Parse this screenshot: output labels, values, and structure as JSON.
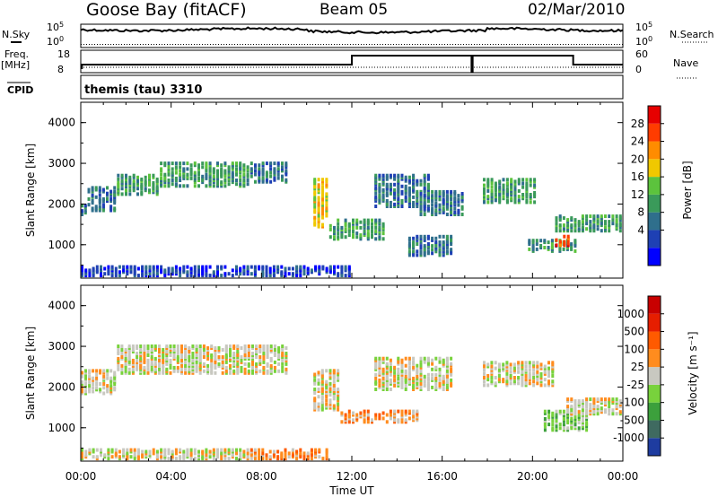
{
  "header": {
    "station": "Goose Bay (fitACF)",
    "beam": "Beam 05",
    "date": "02/Mar/2010"
  },
  "top_panels": {
    "nsky_label": "N.Sky",
    "nsearch_label": "N.Search",
    "ns_ticks_left": [
      "10^5",
      "10^0"
    ],
    "ns_ticks_right": [
      "10^5",
      "10^0"
    ],
    "freq_label": "Freq.",
    "freq_unit": "[MHz]",
    "freq_ticks": [
      "18",
      "8"
    ],
    "nave_label": "Nave",
    "nave_ticks": [
      "60",
      "0"
    ],
    "cpid_label": "CPID",
    "cpid_text": "themis (tau) 3310"
  },
  "chart_data": [
    {
      "type": "heatmap",
      "title": "Power",
      "ylabel": "Slant Range [km]",
      "ylim": [
        180,
        4500
      ],
      "yticks": [
        "4000",
        "3000",
        "2000",
        "1000"
      ],
      "colorbar": {
        "label": "Power [dB]",
        "ticks": [
          "28",
          "24",
          "20",
          "16",
          "12",
          "8",
          "4"
        ],
        "colors": [
          "#0000ff",
          "#1e40b4",
          "#2f6f8c",
          "#3a9a5a",
          "#5cc33d",
          "#f0c800",
          "#ff8c00",
          "#ff3c00",
          "#e60000"
        ]
      },
      "regions": [
        {
          "t": [
            0.0,
            0.3
          ],
          "r": [
            1700,
            2000
          ],
          "level": 2
        },
        {
          "t": [
            0.3,
            1.6
          ],
          "r": [
            1800,
            2400
          ],
          "level": 2
        },
        {
          "t": [
            1.6,
            3.5
          ],
          "r": [
            2200,
            2700
          ],
          "level": 3
        },
        {
          "t": [
            3.5,
            6.0
          ],
          "r": [
            2400,
            3000
          ],
          "level": 3
        },
        {
          "t": [
            6.0,
            7.5
          ],
          "r": [
            2400,
            3000
          ],
          "level": 3
        },
        {
          "t": [
            7.5,
            9.2
          ],
          "r": [
            2500,
            3000
          ],
          "level": 2
        },
        {
          "t": [
            10.3,
            11.0
          ],
          "r": [
            1400,
            2600
          ],
          "level": 5
        },
        {
          "t": [
            11.0,
            13.5
          ],
          "r": [
            1100,
            1600
          ],
          "level": 3
        },
        {
          "t": [
            13.0,
            15.5
          ],
          "r": [
            1900,
            2700
          ],
          "level": 2
        },
        {
          "t": [
            14.5,
            16.5
          ],
          "r": [
            700,
            1200
          ],
          "level": 2
        },
        {
          "t": [
            15.0,
            17.0
          ],
          "r": [
            1700,
            2300
          ],
          "level": 2
        },
        {
          "t": [
            17.8,
            20.2
          ],
          "r": [
            2000,
            2600
          ],
          "level": 3
        },
        {
          "t": [
            19.8,
            22.0
          ],
          "r": [
            800,
            1100
          ],
          "level": 3
        },
        {
          "t": [
            21.0,
            21.7
          ],
          "r": [
            900,
            1200
          ],
          "level": 7
        },
        {
          "t": [
            21.0,
            24.0
          ],
          "r": [
            1300,
            1700
          ],
          "level": 3
        },
        {
          "t": [
            0.0,
            12.0
          ],
          "r": [
            200,
            450
          ],
          "level": 1
        }
      ]
    },
    {
      "type": "heatmap",
      "title": "Velocity",
      "ylabel": "Slant Range [km]",
      "ylim": [
        180,
        4500
      ],
      "yticks": [
        "4000",
        "3000",
        "2000",
        "1000"
      ],
      "colorbar": {
        "label": "Velocity [m s⁻¹]",
        "ticks": [
          "1000",
          "500",
          "100",
          "25",
          "-25",
          "-100",
          "-500",
          "-1000"
        ],
        "colors": [
          "#1e3ca0",
          "#3f6a60",
          "#3ca03c",
          "#78d23c",
          "#c8c8c0",
          "#ff8c1e",
          "#ff5a00",
          "#e61e00",
          "#c80000"
        ]
      },
      "regions": [
        {
          "t": [
            0.0,
            1.6
          ],
          "r": [
            1800,
            2400
          ],
          "level": 4
        },
        {
          "t": [
            1.6,
            9.2
          ],
          "r": [
            2300,
            3000
          ],
          "level": 4
        },
        {
          "t": [
            10.3,
            11.5
          ],
          "r": [
            1400,
            2400
          ],
          "level": 4
        },
        {
          "t": [
            11.5,
            15.0
          ],
          "r": [
            1100,
            1400
          ],
          "level": 5
        },
        {
          "t": [
            13.0,
            16.5
          ],
          "r": [
            1900,
            2700
          ],
          "level": 4
        },
        {
          "t": [
            17.8,
            21.0
          ],
          "r": [
            2000,
            2600
          ],
          "level": 4
        },
        {
          "t": [
            20.5,
            22.5
          ],
          "r": [
            900,
            1400
          ],
          "level": 3
        },
        {
          "t": [
            21.5,
            24.0
          ],
          "r": [
            1300,
            1700
          ],
          "level": 4
        },
        {
          "t": [
            7.5,
            11.0
          ],
          "r": [
            200,
            450
          ],
          "level": 5
        },
        {
          "t": [
            0.0,
            7.5
          ],
          "r": [
            200,
            450
          ],
          "level": 4
        }
      ]
    }
  ],
  "x_axis": {
    "label": "Time UT",
    "ticks": [
      "00:00",
      "04:00",
      "08:00",
      "12:00",
      "16:00",
      "20:00",
      "00:00"
    ],
    "range": [
      0,
      24
    ]
  }
}
